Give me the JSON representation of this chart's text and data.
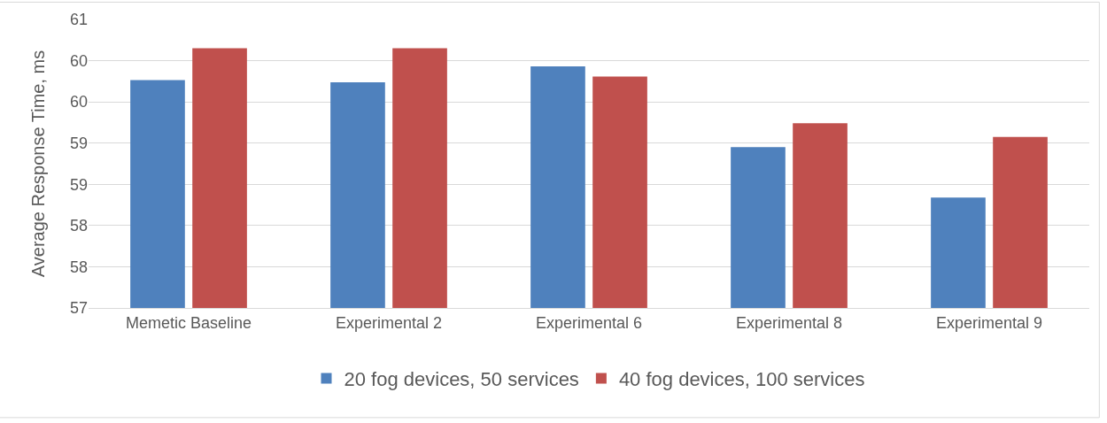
{
  "chart_data": {
    "type": "bar",
    "ylabel": "Average Response Time, ms",
    "categories": [
      "Memetic Baseline",
      "Experimental 2",
      "Experimental 6",
      "Experimental 8",
      "Experimental 9"
    ],
    "series": [
      {
        "name": "20 fog devices, 50 services",
        "color": "#4f81bd",
        "values": [
          60.16,
          60.13,
          60.35,
          59.23,
          58.53
        ]
      },
      {
        "name": "40 fog devices, 100 services",
        "color": "#c0504d",
        "values": [
          60.6,
          60.6,
          60.21,
          59.56,
          59.37
        ]
      }
    ],
    "ylim": [
      57,
      61
    ],
    "yticks": [
      57,
      {
        "value": 57.571,
        "label": "58"
      },
      {
        "value": 58.143,
        "label": "58"
      },
      {
        "value": 58.714,
        "label": "59"
      },
      {
        "value": 59.286,
        "label": "59"
      },
      {
        "value": 59.857,
        "label": "60"
      },
      {
        "value": 60.429,
        "label": "60"
      },
      61
    ],
    "grid": "y",
    "legend": "bottom"
  }
}
